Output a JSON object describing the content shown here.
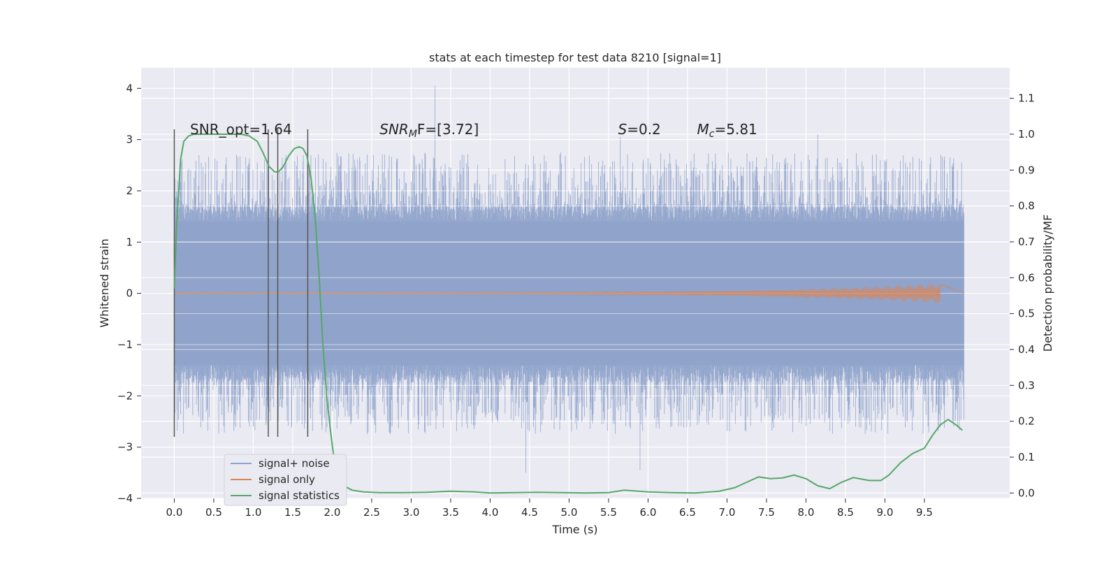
{
  "chart_data": {
    "type": "line",
    "title": "stats at each timestep for test data 8210 [signal=1]",
    "xlabel": "Time (s)",
    "ylabel": "Whitened strain",
    "y2label": "Detection probability/MF",
    "xlim": [
      -0.42,
      10.58
    ],
    "ylim": [
      -4.0,
      4.4
    ],
    "y2lim": [
      -0.015,
      1.185
    ],
    "xticks": [
      "0.0",
      "0.5",
      "1.0",
      "1.5",
      "2.0",
      "2.5",
      "3.0",
      "3.5",
      "4.0",
      "4.5",
      "5.0",
      "5.5",
      "6.0",
      "6.5",
      "7.0",
      "7.5",
      "8.0",
      "8.5",
      "9.0",
      "9.5"
    ],
    "yticks": [
      "4",
      "3",
      "2",
      "1",
      "0",
      "−1",
      "−2",
      "−3",
      "−4"
    ],
    "y2ticks": [
      "0.0",
      "0.1",
      "0.2",
      "0.3",
      "0.4",
      "0.5",
      "0.6",
      "0.7",
      "0.8",
      "0.9",
      "1.0",
      "1.1"
    ],
    "grid": true,
    "legend_position": "lower-left",
    "annotations": [
      {
        "text": "SNR_opt=1.64",
        "x": 0.2,
        "y": 3.2
      },
      {
        "text": "SNR",
        "sub": "M",
        "suffix": "F=[3.72]",
        "x": 2.6,
        "y": 3.2
      },
      {
        "text": "S",
        "suffix": "=0.2",
        "x": 5.62,
        "y": 3.2
      },
      {
        "text": "M",
        "sub": "c",
        "suffix": "=5.81",
        "x": 6.62,
        "y": 3.2
      }
    ],
    "markers": {
      "x": [
        0.0,
        1.19,
        1.31,
        1.69
      ],
      "ymin": -2.8,
      "ymax": 3.2
    },
    "series": [
      {
        "name": "signal+ noise",
        "color": "#8fa3ca",
        "envelope": {
          "inner": 1.4,
          "outer": 1.7,
          "spike_max": 4.05,
          "spike_min": -3.5,
          "x_start": 0.0,
          "x_end": 10.0
        },
        "notable_spikes": [
          [
            3.3,
            4.05
          ],
          [
            4.45,
            -3.5
          ],
          [
            5.9,
            -3.45
          ],
          [
            5.65,
            3.05
          ],
          [
            8.15,
            3.1
          ],
          [
            9.75,
            2.6
          ]
        ]
      },
      {
        "name": "signal only",
        "color": "#dd8452",
        "chirp": {
          "x_start": 0.0,
          "x_end": 9.7,
          "max_amp": 0.18
        }
      },
      {
        "name": "signal statistics",
        "color": "#55a868",
        "axis": "right",
        "x": [
          0.0,
          0.03,
          0.08,
          0.12,
          0.18,
          0.25,
          0.35,
          0.5,
          0.7,
          0.85,
          0.95,
          1.05,
          1.12,
          1.2,
          1.27,
          1.32,
          1.38,
          1.45,
          1.52,
          1.58,
          1.63,
          1.68,
          1.73,
          1.78,
          1.83,
          1.88,
          1.93,
          1.98,
          2.03,
          2.08,
          2.15,
          2.25,
          2.4,
          2.6,
          2.9,
          3.2,
          3.5,
          3.8,
          4.0,
          4.3,
          4.6,
          4.9,
          5.2,
          5.5,
          5.7,
          6.0,
          6.3,
          6.6,
          6.9,
          7.1,
          7.25,
          7.4,
          7.55,
          7.7,
          7.85,
          8.0,
          8.15,
          8.3,
          8.45,
          8.6,
          8.8,
          8.95,
          9.05,
          9.2,
          9.35,
          9.5,
          9.6,
          9.7,
          9.8,
          9.9,
          9.98
        ],
        "values": [
          0.57,
          0.75,
          0.93,
          0.98,
          0.995,
          1.0,
          1.0,
          1.0,
          1.0,
          1.0,
          0.995,
          0.98,
          0.95,
          0.91,
          0.895,
          0.895,
          0.91,
          0.94,
          0.96,
          0.965,
          0.96,
          0.94,
          0.88,
          0.78,
          0.62,
          0.42,
          0.27,
          0.17,
          0.08,
          0.04,
          0.02,
          0.008,
          0.003,
          0.001,
          0.001,
          0.002,
          0.005,
          0.003,
          0.0,
          0.001,
          0.002,
          0.001,
          0.0,
          0.001,
          0.008,
          0.003,
          0.001,
          0.0,
          0.005,
          0.015,
          0.03,
          0.045,
          0.04,
          0.042,
          0.05,
          0.04,
          0.02,
          0.012,
          0.03,
          0.043,
          0.035,
          0.035,
          0.05,
          0.085,
          0.11,
          0.125,
          0.16,
          0.19,
          0.205,
          0.19,
          0.175
        ]
      }
    ]
  }
}
